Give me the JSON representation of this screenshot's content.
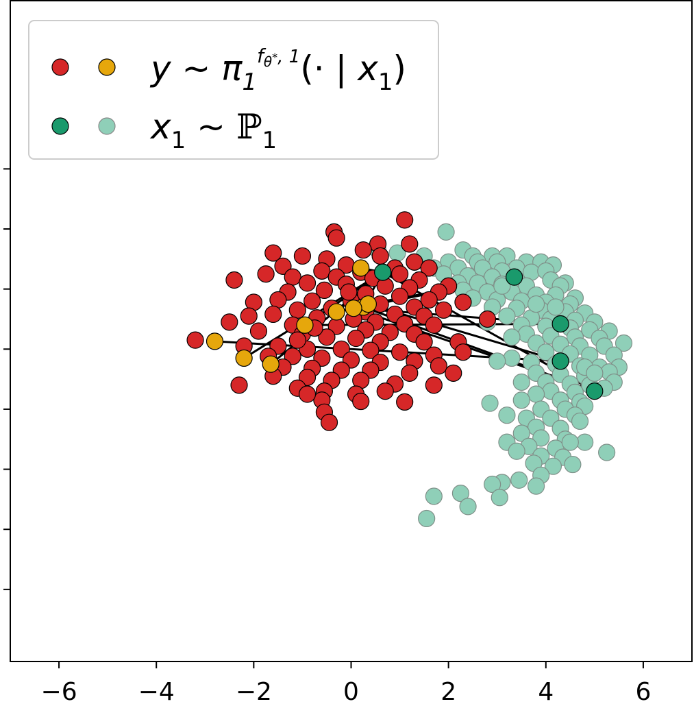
{
  "chart_data": {
    "type": "scatter",
    "xlim": [
      -7,
      7
    ],
    "ylim": [
      -5.7,
      5.3
    ],
    "xticks": [
      -6,
      -4,
      -2,
      0,
      2,
      4,
      6
    ],
    "xtick_labels": [
      "−6",
      "−4",
      "−2",
      "0",
      "2",
      "4",
      "6"
    ],
    "yticks": [
      -4.5,
      -3.5,
      -2.5,
      -1.5,
      -0.5,
      0.5,
      1.5,
      2.5
    ],
    "ytick_labels": [],
    "grid": false,
    "legend_position": "upper-left",
    "legend": [
      {
        "label": "y ~ π₁^{f_{θ*},1}(· | x₁)",
        "markers": [
          "#d62728",
          "#e6a70c"
        ]
      },
      {
        "label": "x₁ ~ ℙ₁",
        "markers": [
          "#1a9a6c",
          "#8fcfb8"
        ]
      }
    ],
    "colors": {
      "y_samples": "#d62728",
      "y_highlight": "#e6a70c",
      "x_highlight": "#1a9a6c",
      "x_samples": "#8fcfb8",
      "links": "#000000"
    },
    "series": [
      {
        "points": [
          [
            1.1,
            1.65
          ],
          [
            -0.35,
            1.45
          ],
          [
            -0.3,
            1.35
          ],
          [
            0.55,
            1.25
          ],
          [
            1.2,
            1.25
          ],
          [
            -1.6,
            1.1
          ],
          [
            0.25,
            1.15
          ],
          [
            0.6,
            1.05
          ],
          [
            -1.0,
            1.05
          ],
          [
            -0.5,
            1.0
          ],
          [
            1.3,
            0.95
          ],
          [
            1.6,
            0.85
          ],
          [
            -1.4,
            0.88
          ],
          [
            -0.1,
            0.9
          ],
          [
            0.9,
            0.85
          ],
          [
            -1.75,
            0.75
          ],
          [
            -0.6,
            0.8
          ],
          [
            0.2,
            0.78
          ],
          [
            1.0,
            0.75
          ],
          [
            -2.4,
            0.65
          ],
          [
            -1.2,
            0.7
          ],
          [
            -0.3,
            0.7
          ],
          [
            0.45,
            0.68
          ],
          [
            1.4,
            0.65
          ],
          [
            2.0,
            0.55
          ],
          [
            -0.9,
            0.6
          ],
          [
            -0.1,
            0.58
          ],
          [
            0.7,
            0.55
          ],
          [
            1.2,
            0.52
          ],
          [
            1.8,
            0.45
          ],
          [
            -1.3,
            0.45
          ],
          [
            -0.55,
            0.48
          ],
          [
            0.3,
            0.42
          ],
          [
            1.0,
            0.38
          ],
          [
            1.6,
            0.32
          ],
          [
            2.3,
            0.28
          ],
          [
            -2.0,
            0.28
          ],
          [
            -1.5,
            0.32
          ],
          [
            -0.8,
            0.3
          ],
          [
            0.0,
            0.3
          ],
          [
            0.6,
            0.25
          ],
          [
            1.3,
            0.2
          ],
          [
            1.9,
            0.15
          ],
          [
            -1.1,
            0.15
          ],
          [
            -0.4,
            0.18
          ],
          [
            0.3,
            0.12
          ],
          [
            0.9,
            0.08
          ],
          [
            1.5,
            0.05
          ],
          [
            2.8,
            0.0
          ],
          [
            -2.1,
            0.05
          ],
          [
            -1.6,
            0.08
          ],
          [
            -0.7,
            0.02
          ],
          [
            0.05,
            0.0
          ],
          [
            0.5,
            -0.05
          ],
          [
            1.1,
            -0.08
          ],
          [
            1.7,
            -0.1
          ],
          [
            -2.5,
            -0.05
          ],
          [
            -1.2,
            -0.1
          ],
          [
            -0.3,
            -0.12
          ],
          [
            0.3,
            -0.18
          ],
          [
            0.8,
            -0.22
          ],
          [
            1.3,
            -0.25
          ],
          [
            -3.2,
            -0.35
          ],
          [
            -1.9,
            -0.2
          ],
          [
            -1.0,
            -0.25
          ],
          [
            -0.5,
            -0.3
          ],
          [
            0.1,
            -0.32
          ],
          [
            0.6,
            -0.38
          ],
          [
            1.5,
            -0.38
          ],
          [
            2.2,
            -0.38
          ],
          [
            -2.2,
            -0.45
          ],
          [
            -1.5,
            -0.45
          ],
          [
            -0.9,
            -0.5
          ],
          [
            -0.2,
            -0.5
          ],
          [
            0.4,
            -0.52
          ],
          [
            1.0,
            -0.55
          ],
          [
            1.7,
            -0.6
          ],
          [
            2.3,
            -0.55
          ],
          [
            -1.7,
            -0.62
          ],
          [
            -1.2,
            -0.62
          ],
          [
            -0.6,
            -0.65
          ],
          [
            0.0,
            -0.68
          ],
          [
            0.6,
            -0.72
          ],
          [
            1.3,
            -0.7
          ],
          [
            1.8,
            -0.78
          ],
          [
            -1.4,
            -0.8
          ],
          [
            -0.8,
            -0.82
          ],
          [
            -0.2,
            -0.85
          ],
          [
            0.4,
            -0.85
          ],
          [
            1.2,
            -0.9
          ],
          [
            2.1,
            -0.9
          ],
          [
            -1.6,
            -0.95
          ],
          [
            -0.9,
            -0.97
          ],
          [
            -0.4,
            -1.02
          ],
          [
            0.2,
            -1.02
          ],
          [
            0.9,
            -1.08
          ],
          [
            1.7,
            -1.1
          ],
          [
            -2.3,
            -1.1
          ],
          [
            -1.1,
            -1.15
          ],
          [
            -0.55,
            -1.2
          ],
          [
            0.1,
            -1.25
          ],
          [
            0.7,
            -1.2
          ],
          [
            -0.6,
            -1.35
          ],
          [
            0.2,
            -1.37
          ],
          [
            1.1,
            -1.38
          ],
          [
            -0.55,
            -1.55
          ],
          [
            -0.45,
            -1.72
          ],
          [
            -0.9,
            -1.25
          ],
          [
            -1.1,
            -0.35
          ],
          [
            -0.05,
            0.45
          ],
          [
            -0.75,
            -0.15
          ]
        ],
        "color": "#d62728"
      },
      {
        "points": [
          [
            0.2,
            0.85
          ],
          [
            0.65,
            0.78
          ],
          [
            0.25,
            0.2
          ],
          [
            0.35,
            0.25
          ],
          [
            0.05,
            0.18
          ],
          [
            -0.3,
            0.12
          ],
          [
            -0.95,
            -0.1
          ],
          [
            -2.8,
            -0.37
          ],
          [
            -2.2,
            -0.65
          ],
          [
            -1.65,
            -0.75
          ]
        ],
        "color": "#e6a70c"
      },
      {
        "points": [
          [
            0.65,
            0.78
          ],
          [
            3.35,
            0.7
          ],
          [
            4.3,
            -0.08
          ],
          [
            4.3,
            -0.7
          ],
          [
            5.0,
            -1.2
          ]
        ],
        "color": "#1a9a6c"
      },
      {
        "points": [
          [
            1.95,
            1.45
          ],
          [
            0.55,
            1.15
          ],
          [
            0.95,
            1.1
          ],
          [
            1.5,
            1.05
          ],
          [
            2.3,
            1.15
          ],
          [
            2.5,
            1.05
          ],
          [
            2.9,
            1.05
          ],
          [
            3.2,
            1.05
          ],
          [
            3.6,
            0.95
          ],
          [
            3.9,
            0.95
          ],
          [
            4.15,
            0.9
          ],
          [
            1.3,
            0.95
          ],
          [
            2.0,
            0.95
          ],
          [
            2.6,
            0.95
          ],
          [
            3.0,
            0.95
          ],
          [
            3.4,
            0.85
          ],
          [
            1.7,
            0.85
          ],
          [
            2.2,
            0.85
          ],
          [
            2.7,
            0.85
          ],
          [
            3.1,
            0.8
          ],
          [
            3.7,
            0.78
          ],
          [
            4.0,
            0.8
          ],
          [
            1.9,
            0.75
          ],
          [
            2.4,
            0.72
          ],
          [
            2.9,
            0.7
          ],
          [
            3.4,
            0.65
          ],
          [
            4.1,
            0.65
          ],
          [
            4.4,
            0.6
          ],
          [
            2.2,
            0.6
          ],
          [
            2.6,
            0.6
          ],
          [
            3.1,
            0.58
          ],
          [
            3.6,
            0.55
          ],
          [
            4.3,
            0.55
          ],
          [
            2.3,
            0.48
          ],
          [
            2.8,
            0.45
          ],
          [
            3.3,
            0.45
          ],
          [
            3.8,
            0.4
          ],
          [
            4.2,
            0.4
          ],
          [
            4.6,
            0.35
          ],
          [
            2.5,
            0.35
          ],
          [
            3.0,
            0.32
          ],
          [
            3.5,
            0.3
          ],
          [
            4.0,
            0.28
          ],
          [
            4.5,
            0.25
          ],
          [
            2.9,
            0.2
          ],
          [
            3.4,
            0.18
          ],
          [
            3.9,
            0.15
          ],
          [
            4.4,
            0.12
          ],
          [
            4.8,
            0.1
          ],
          [
            3.2,
            0.05
          ],
          [
            3.7,
            0.02
          ],
          [
            4.1,
            0.0
          ],
          [
            4.6,
            -0.02
          ],
          [
            5.0,
            -0.05
          ],
          [
            3.5,
            -0.1
          ],
          [
            4.0,
            -0.12
          ],
          [
            4.5,
            -0.15
          ],
          [
            4.9,
            -0.18
          ],
          [
            5.3,
            -0.2
          ],
          [
            3.6,
            -0.25
          ],
          [
            4.1,
            -0.28
          ],
          [
            4.6,
            -0.3
          ],
          [
            5.1,
            -0.32
          ],
          [
            3.8,
            -0.4
          ],
          [
            4.3,
            -0.42
          ],
          [
            4.7,
            -0.45
          ],
          [
            5.2,
            -0.45
          ],
          [
            5.6,
            -0.4
          ],
          [
            4.0,
            -0.55
          ],
          [
            4.5,
            -0.58
          ],
          [
            4.9,
            -0.6
          ],
          [
            5.4,
            -0.6
          ],
          [
            3.3,
            -0.65
          ],
          [
            3.7,
            -0.72
          ],
          [
            4.2,
            -0.75
          ],
          [
            4.7,
            -0.78
          ],
          [
            5.1,
            -0.8
          ],
          [
            5.5,
            -0.8
          ],
          [
            3.0,
            -0.7
          ],
          [
            3.8,
            -0.9
          ],
          [
            4.3,
            -0.92
          ],
          [
            4.8,
            -0.95
          ],
          [
            5.3,
            -0.88
          ],
          [
            4.0,
            -1.05
          ],
          [
            4.5,
            -1.08
          ],
          [
            4.9,
            -1.1
          ],
          [
            5.4,
            -1.05
          ],
          [
            3.5,
            -1.05
          ],
          [
            4.1,
            -1.2
          ],
          [
            4.6,
            -1.22
          ],
          [
            5.2,
            -1.15
          ],
          [
            3.8,
            -1.25
          ],
          [
            4.3,
            -1.35
          ],
          [
            4.7,
            -1.38
          ],
          [
            3.5,
            -1.35
          ],
          [
            3.9,
            -1.5
          ],
          [
            4.4,
            -1.5
          ],
          [
            4.8,
            -1.45
          ],
          [
            3.6,
            -1.65
          ],
          [
            4.1,
            -1.65
          ],
          [
            4.6,
            -1.6
          ],
          [
            2.85,
            -1.4
          ],
          [
            3.2,
            -1.6
          ],
          [
            3.8,
            -1.8
          ],
          [
            4.3,
            -1.82
          ],
          [
            4.7,
            -1.7
          ],
          [
            3.5,
            -1.9
          ],
          [
            3.9,
            -1.98
          ],
          [
            4.4,
            -2.0
          ],
          [
            4.8,
            -2.05
          ],
          [
            3.2,
            -2.05
          ],
          [
            3.65,
            -2.12
          ],
          [
            4.2,
            -2.15
          ],
          [
            4.5,
            -2.05
          ],
          [
            3.4,
            -2.2
          ],
          [
            3.9,
            -2.28
          ],
          [
            4.35,
            -2.3
          ],
          [
            5.25,
            -2.22
          ],
          [
            3.75,
            -2.4
          ],
          [
            4.15,
            -2.45
          ],
          [
            4.55,
            -2.42
          ],
          [
            3.9,
            -2.6
          ],
          [
            3.1,
            -2.72
          ],
          [
            3.45,
            -2.68
          ],
          [
            3.8,
            -2.78
          ],
          [
            2.9,
            -2.75
          ],
          [
            1.7,
            -2.95
          ],
          [
            2.25,
            -2.9
          ],
          [
            3.05,
            -2.97
          ],
          [
            2.4,
            -3.12
          ],
          [
            1.55,
            -3.32
          ],
          [
            3.3,
            -0.3
          ],
          [
            2.8,
            -0.05
          ],
          [
            3.1,
            0.55
          ],
          [
            4.2,
            0.2
          ],
          [
            3.8,
            0.25
          ],
          [
            4.8,
            -0.8
          ],
          [
            5.0,
            -0.9
          ]
        ],
        "color": "#8fcfb8"
      }
    ],
    "links": [
      [
        [
          0.65,
          0.78
        ],
        [
          0.25,
          0.2
        ]
      ],
      [
        [
          0.65,
          0.78
        ],
        [
          -0.3,
          0.12
        ]
      ],
      [
        [
          0.65,
          0.78
        ],
        [
          -0.95,
          -0.1
        ]
      ],
      [
        [
          0.65,
          0.78
        ],
        [
          -2.2,
          -0.65
        ]
      ],
      [
        [
          0.65,
          0.78
        ],
        [
          -1.65,
          -0.75
        ]
      ],
      [
        [
          0.65,
          0.78
        ],
        [
          0.2,
          0.85
        ]
      ],
      [
        [
          0.65,
          0.78
        ],
        [
          5.0,
          -1.2
        ]
      ],
      [
        [
          3.35,
          0.7
        ],
        [
          -0.3,
          0.12
        ]
      ],
      [
        [
          3.35,
          0.7
        ],
        [
          0.35,
          0.25
        ]
      ],
      [
        [
          4.3,
          -0.08
        ],
        [
          0.05,
          0.18
        ]
      ],
      [
        [
          4.3,
          -0.08
        ],
        [
          -0.95,
          -0.1
        ]
      ],
      [
        [
          4.3,
          -0.7
        ],
        [
          0.35,
          0.25
        ]
      ],
      [
        [
          4.3,
          -0.7
        ],
        [
          -2.8,
          -0.37
        ]
      ],
      [
        [
          5.0,
          -1.2
        ],
        [
          0.25,
          0.2
        ]
      ],
      [
        [
          5.0,
          -1.2
        ],
        [
          0.05,
          0.18
        ]
      ]
    ]
  }
}
